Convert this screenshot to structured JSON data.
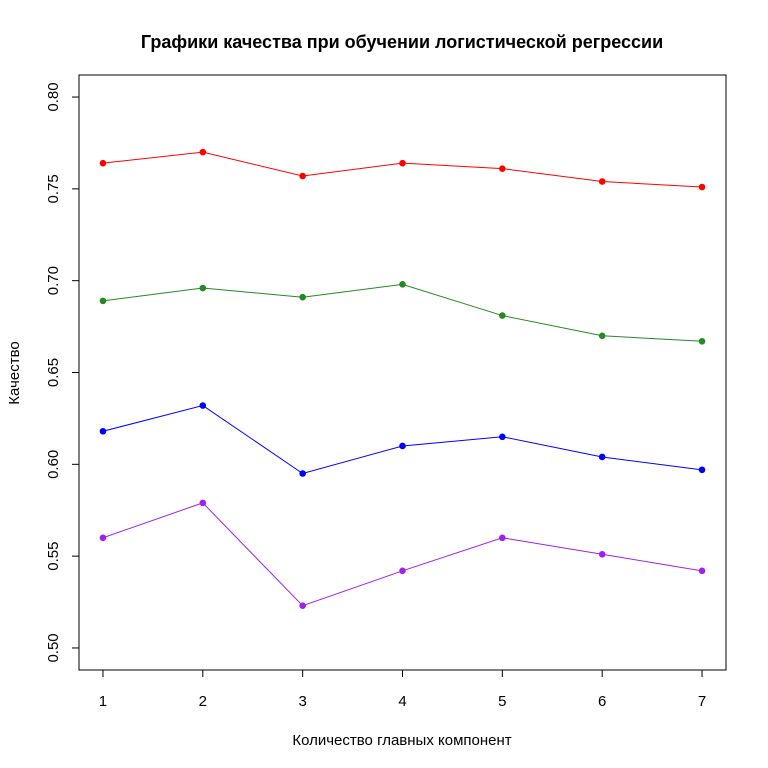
{
  "chart_data": {
    "type": "line",
    "title": "Графики качества при обучении логистической регрессии",
    "xlabel": "Количество главных компонент",
    "ylabel": "Качество",
    "x": [
      1,
      2,
      3,
      4,
      5,
      6,
      7
    ],
    "xlim": [
      0.76,
      7.24
    ],
    "ylim": [
      0.488,
      0.812
    ],
    "x_ticks": [
      "1",
      "2",
      "3",
      "4",
      "5",
      "6",
      "7"
    ],
    "y_ticks": [
      "0.50",
      "0.55",
      "0.60",
      "0.65",
      "0.70",
      "0.75",
      "0.80"
    ],
    "y_tick_values": [
      0.5,
      0.55,
      0.6,
      0.65,
      0.7,
      0.75,
      0.8
    ],
    "grid": false,
    "series": [
      {
        "color": "#ff0000",
        "values": [
          0.764,
          0.77,
          0.757,
          0.764,
          0.761,
          0.754,
          0.751
        ]
      },
      {
        "color": "#228b22",
        "values": [
          0.689,
          0.696,
          0.691,
          0.698,
          0.681,
          0.67,
          0.667
        ]
      },
      {
        "color": "#0000ff",
        "values": [
          0.618,
          0.632,
          0.595,
          0.61,
          0.615,
          0.604,
          0.597
        ]
      },
      {
        "color": "#a020f0",
        "values": [
          0.56,
          0.579,
          0.523,
          0.542,
          0.56,
          0.551,
          0.542
        ]
      }
    ]
  }
}
